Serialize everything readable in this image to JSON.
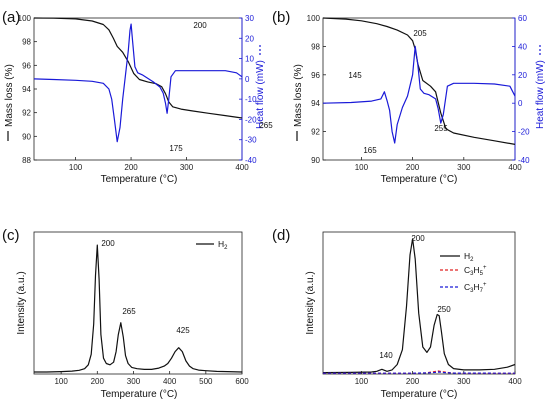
{
  "chart_data": [
    {
      "panel_label": "(a)",
      "type": "line",
      "xlabel": "Temperature (°C)",
      "ylabel": "Mass loss (%)",
      "y2label": "Heat flow (mW)",
      "xlim": [
        25,
        400
      ],
      "ylim": [
        88,
        100
      ],
      "y2lim": [
        -40,
        30
      ],
      "xticks": [
        100,
        200,
        300,
        400
      ],
      "yticks": [
        88,
        90,
        92,
        94,
        96,
        98,
        100
      ],
      "y2ticks": [
        -40,
        -30,
        -20,
        -10,
        0,
        10,
        20,
        30
      ],
      "colors": {
        "mass": "#111111",
        "heat": "#1a1ad8"
      },
      "series": [
        {
          "axis": "left",
          "x": [
            25,
            60,
            100,
            130,
            150,
            160,
            168,
            175,
            185,
            195,
            205,
            215,
            230,
            245,
            255,
            262,
            268,
            275,
            290,
            310,
            340,
            370,
            400
          ],
          "values": [
            100,
            99.98,
            99.92,
            99.75,
            99.45,
            99.0,
            98.3,
            97.6,
            97.1,
            96.3,
            95.3,
            94.8,
            94.6,
            94.45,
            94.2,
            93.6,
            92.9,
            92.5,
            92.3,
            92.15,
            91.95,
            91.75,
            91.55
          ]
        },
        {
          "axis": "right",
          "x": [
            25,
            60,
            100,
            130,
            150,
            160,
            165,
            170,
            175,
            180,
            185,
            190,
            195,
            198,
            200,
            203,
            207,
            212,
            220,
            240,
            252,
            258,
            262,
            265,
            268,
            272,
            280,
            300,
            340,
            370,
            390,
            400
          ],
          "values": [
            0,
            -0.3,
            -0.7,
            -1.2,
            -2.2,
            -5,
            -10,
            -20,
            -31,
            -24,
            -10,
            2,
            14,
            24,
            27,
            18,
            6,
            3,
            2,
            -1.5,
            -4,
            -7,
            -12,
            -17,
            -10,
            1,
            4,
            4,
            4,
            4,
            3,
            1
          ]
        }
      ],
      "annotations": [
        "200",
        "175",
        "265"
      ]
    },
    {
      "panel_label": "(b)",
      "type": "line",
      "xlabel": "Temperature (°C)",
      "ylabel": "Mass loss (%)",
      "y2label": "Heat flow (mW)",
      "xlim": [
        25,
        400
      ],
      "ylim": [
        90,
        100
      ],
      "y2lim": [
        -40,
        60
      ],
      "xticks": [
        100,
        200,
        300,
        400
      ],
      "yticks": [
        90,
        92,
        94,
        96,
        98,
        100
      ],
      "y2ticks": [
        -40,
        -20,
        0,
        20,
        40,
        60
      ],
      "colors": {
        "mass": "#111111",
        "heat": "#1a1ad8"
      },
      "series": [
        {
          "axis": "left",
          "x": [
            25,
            70,
            100,
            130,
            150,
            170,
            190,
            200,
            205,
            210,
            220,
            235,
            245,
            255,
            265,
            280,
            320,
            360,
            400
          ],
          "values": [
            100,
            99.92,
            99.8,
            99.6,
            99.4,
            99.15,
            98.8,
            98.4,
            97.8,
            96.8,
            95.6,
            95.2,
            94.8,
            93.3,
            92.2,
            91.9,
            91.6,
            91.35,
            91.1
          ]
        },
        {
          "axis": "right",
          "x": [
            25,
            80,
            120,
            138,
            145,
            150,
            155,
            160,
            165,
            170,
            180,
            190,
            200,
            205,
            210,
            215,
            222,
            232,
            245,
            250,
            255,
            260,
            268,
            280,
            320,
            360,
            390,
            400
          ],
          "values": [
            0,
            0.5,
            1.5,
            3,
            8,
            2,
            -5,
            -20,
            -28,
            -15,
            -3,
            5,
            20,
            40,
            28,
            10,
            7,
            6,
            3,
            -4,
            -14,
            -8,
            12,
            14,
            14,
            13.5,
            12,
            5
          ]
        }
      ],
      "annotations": [
        "205",
        "145",
        "165",
        "255"
      ]
    },
    {
      "panel_label": "(c)",
      "type": "line",
      "xlabel": "Temperature (°C)",
      "ylabel": "Intensity (a.u.)",
      "xlim": [
        25,
        600
      ],
      "ylim": [
        0,
        1.08
      ],
      "xticks": [
        100,
        200,
        300,
        400,
        500,
        600
      ],
      "legend": [
        {
          "label": "H2",
          "color": "#111111"
        }
      ],
      "series": [
        {
          "name": "H2",
          "x": [
            25,
            60,
            100,
            130,
            150,
            165,
            175,
            183,
            190,
            195,
            200,
            205,
            210,
            217,
            225,
            235,
            245,
            252,
            258,
            265,
            272,
            278,
            285,
            295,
            310,
            330,
            350,
            370,
            385,
            395,
            405,
            415,
            425,
            435,
            445,
            455,
            465,
            480,
            500,
            530,
            560,
            600
          ],
          "values": [
            0.015,
            0.015,
            0.018,
            0.022,
            0.028,
            0.04,
            0.07,
            0.15,
            0.38,
            0.75,
            0.98,
            0.72,
            0.3,
            0.12,
            0.08,
            0.07,
            0.09,
            0.17,
            0.3,
            0.39,
            0.28,
            0.14,
            0.08,
            0.05,
            0.04,
            0.035,
            0.035,
            0.045,
            0.06,
            0.08,
            0.12,
            0.17,
            0.2,
            0.17,
            0.1,
            0.06,
            0.04,
            0.03,
            0.025,
            0.02,
            0.018,
            0.015
          ]
        }
      ],
      "annotations": [
        "200",
        "265",
        "425"
      ]
    },
    {
      "panel_label": "(d)",
      "type": "line",
      "xlabel": "Temperature (°C)",
      "ylabel": "Intensity (a.u.)",
      "xlim": [
        25,
        400
      ],
      "ylim": [
        0,
        1.05
      ],
      "xticks": [
        100,
        200,
        300,
        400
      ],
      "legend": [
        {
          "label": "H2",
          "color": "#111111",
          "style": "solid"
        },
        {
          "label": "C3H5+",
          "color": "#e02020",
          "style": "dashed"
        },
        {
          "label": "C3H7+",
          "color": "#1a1ad8",
          "style": "dashed"
        }
      ],
      "series": [
        {
          "name": "H2",
          "x": [
            25,
            80,
            120,
            130,
            140,
            150,
            160,
            170,
            180,
            188,
            195,
            200,
            205,
            212,
            220,
            228,
            235,
            242,
            248,
            252,
            256,
            262,
            270,
            280,
            300,
            330,
            360,
            385,
            400
          ],
          "values": [
            0.01,
            0.012,
            0.015,
            0.02,
            0.035,
            0.02,
            0.03,
            0.07,
            0.18,
            0.5,
            0.88,
            1.0,
            0.85,
            0.45,
            0.2,
            0.16,
            0.2,
            0.36,
            0.44,
            0.43,
            0.32,
            0.15,
            0.07,
            0.04,
            0.03,
            0.03,
            0.035,
            0.05,
            0.07
          ]
        },
        {
          "name": "C3H5+",
          "x": [
            25,
            200,
            225,
            240,
            250,
            260,
            275,
            300,
            400
          ],
          "values": [
            0.005,
            0.005,
            0.008,
            0.016,
            0.022,
            0.016,
            0.008,
            0.005,
            0.005
          ]
        },
        {
          "name": "C3H7+",
          "x": [
            25,
            200,
            230,
            245,
            252,
            260,
            280,
            400
          ],
          "values": [
            0.006,
            0.006,
            0.008,
            0.012,
            0.015,
            0.011,
            0.007,
            0.006
          ]
        }
      ],
      "annotations": [
        "200",
        "250",
        "140"
      ]
    }
  ]
}
